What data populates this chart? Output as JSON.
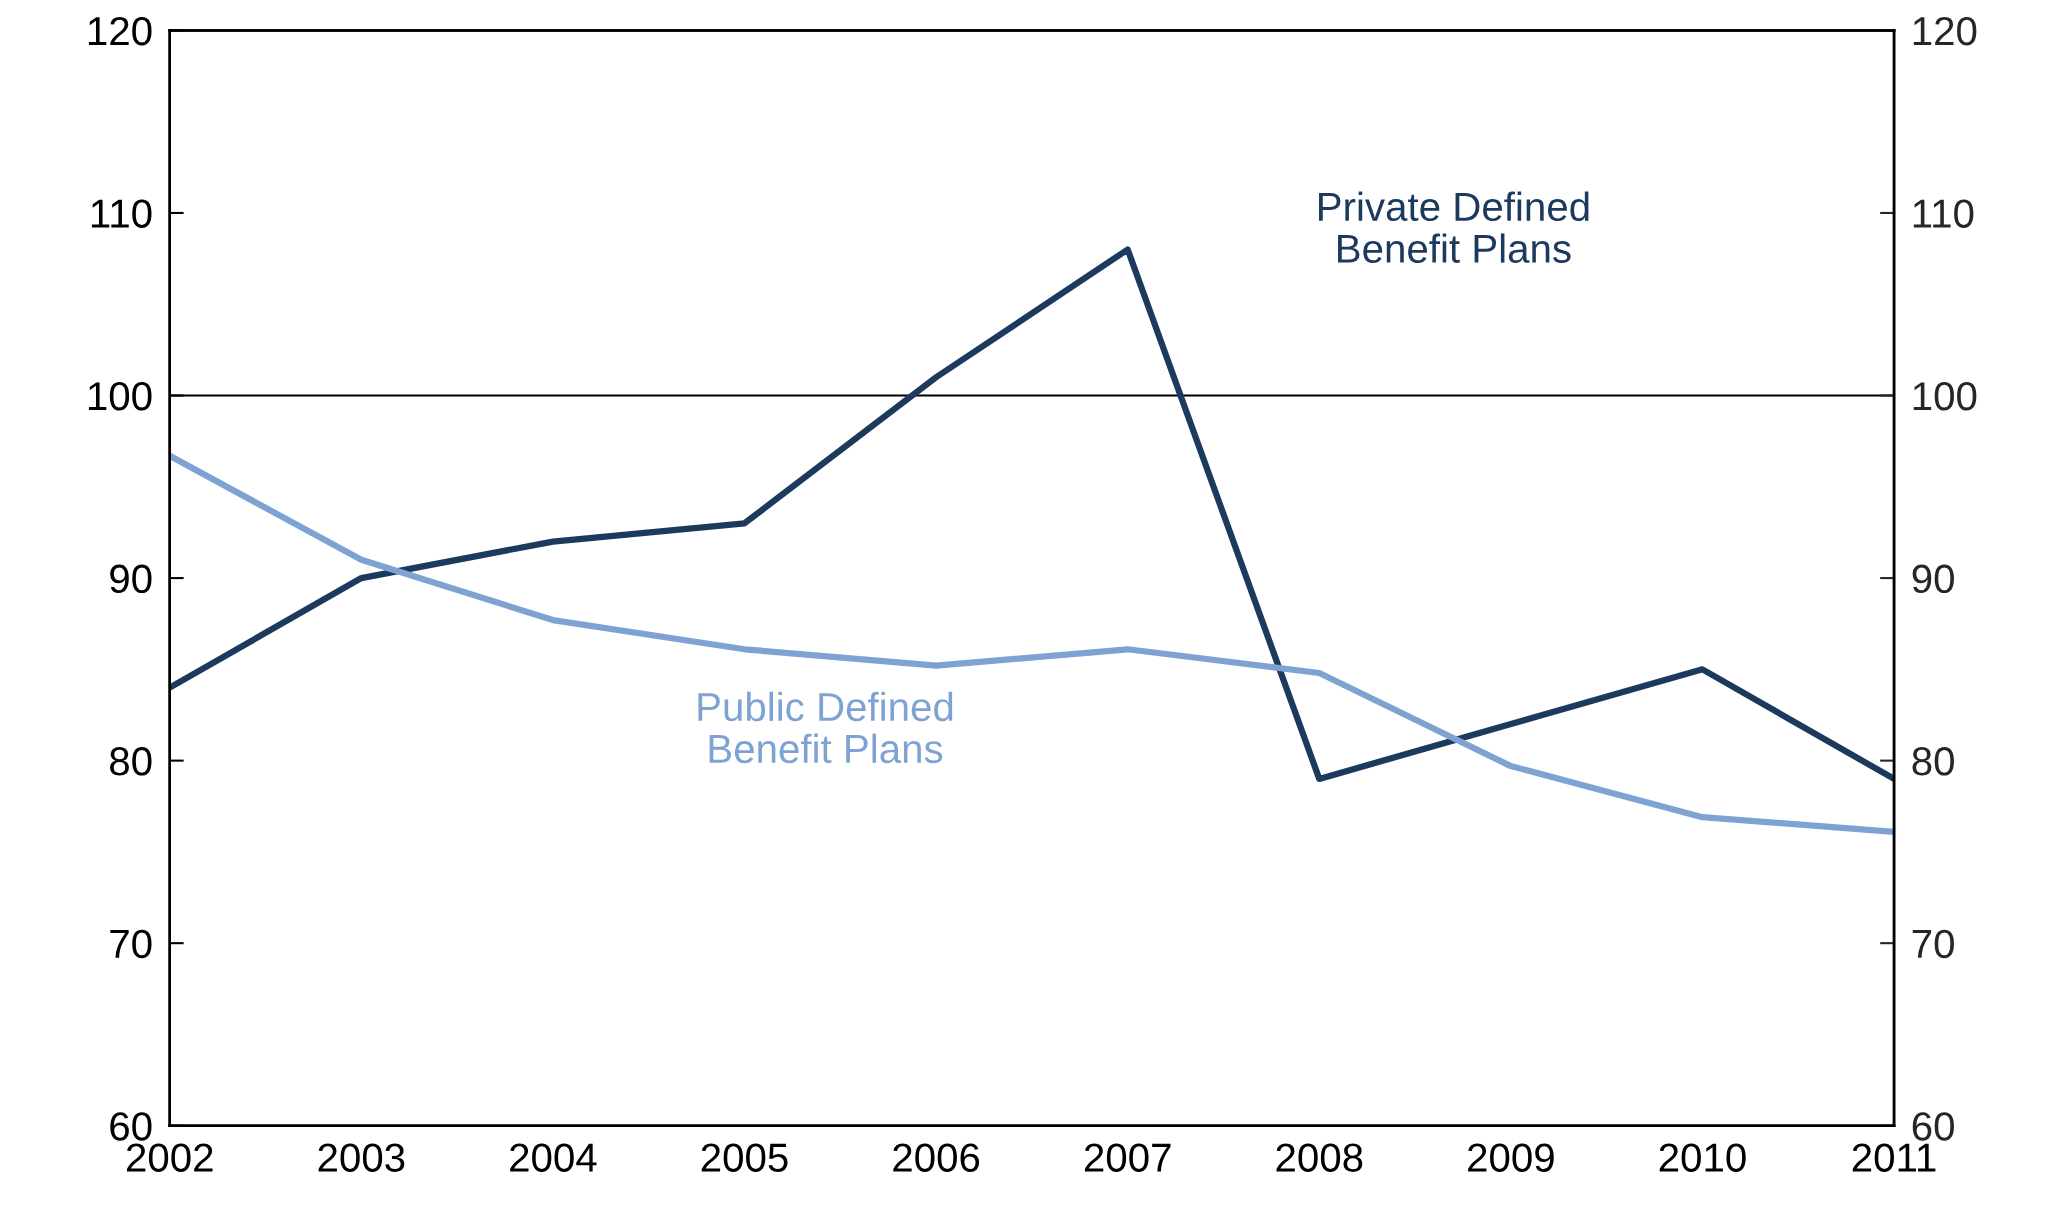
{
  "chart_data": {
    "type": "line",
    "x": [
      2002,
      2003,
      2004,
      2005,
      2006,
      2007,
      2008,
      2009,
      2010,
      2011
    ],
    "series": [
      {
        "name": "Private Defined Benefit Plans",
        "color": "#1c3a5e",
        "values": [
          84,
          90,
          92,
          93,
          101,
          108,
          79,
          82,
          85,
          79
        ]
      },
      {
        "name": "Public Defined Benefit Plans",
        "color": "#7ea3d3",
        "values": [
          96.7,
          91,
          87.7,
          86.1,
          85.2,
          86.1,
          84.8,
          79.7,
          76.9,
          76.1
        ]
      }
    ],
    "xlim": [
      2002,
      2011
    ],
    "xticks": [
      2002,
      2003,
      2004,
      2005,
      2006,
      2007,
      2008,
      2009,
      2010,
      2011
    ],
    "ylim": [
      60,
      120
    ],
    "yticks": [
      60,
      70,
      80,
      90,
      100,
      110,
      120
    ],
    "y2lim": [
      60,
      120
    ],
    "y2ticks": [
      60,
      70,
      80,
      90,
      100,
      110,
      120
    ],
    "ref_lines": [
      {
        "axis": "y",
        "value": 100,
        "color": "#000000"
      }
    ],
    "grid": false,
    "legend": false,
    "marker": "none",
    "line_style": "solid"
  }
}
